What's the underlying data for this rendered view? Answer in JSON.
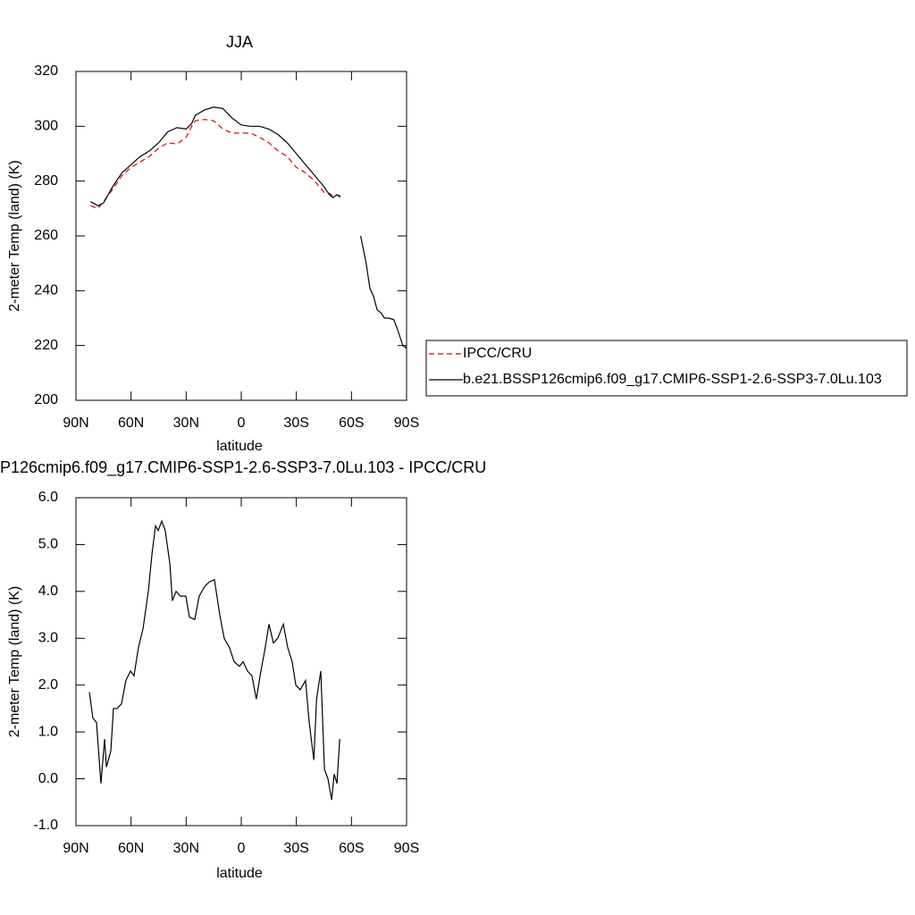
{
  "chart_data": [
    {
      "type": "line",
      "title": "JJA",
      "xlabel": "latitude",
      "ylabel": "2-meter Temp (land) (K)",
      "x": [
        82,
        78,
        75,
        70,
        65,
        60,
        55,
        50,
        45,
        40,
        35,
        30,
        27,
        25,
        20,
        15,
        10,
        5,
        0,
        -5,
        -10,
        -15,
        -20,
        -25,
        -30,
        -35,
        -40,
        -45,
        -48,
        -50,
        -52,
        -54,
        -60,
        -65,
        -68,
        -70,
        -72,
        -74,
        -76,
        -78,
        -80,
        -83,
        -85,
        -88,
        -90
      ],
      "series": [
        {
          "name": "IPCC/CRU",
          "color": "#e00000",
          "dash": "dashed",
          "values": [
            271,
            270,
            272.5,
            277,
            282,
            285,
            287,
            289,
            292,
            294,
            293.5,
            296,
            300,
            302,
            302.5,
            302,
            299,
            297.5,
            297.5,
            297.5,
            296,
            294,
            291,
            289,
            285,
            283,
            280,
            276,
            275.5,
            274.5,
            275,
            274,
            null,
            null,
            null,
            null,
            null,
            null,
            null,
            null,
            null,
            null,
            null,
            null,
            null
          ]
        },
        {
          "name": "b.e21.BSSP126cmip6.f09_g17.CMIP6-SSP1-2.6-SSP3-7.0Lu.103",
          "color": "#000000",
          "dash": "solid",
          "values": [
            272.5,
            271,
            272,
            278,
            283,
            286,
            289,
            291,
            294,
            298,
            299.5,
            299,
            301,
            304,
            306,
            307,
            306.5,
            303,
            300.5,
            300,
            300,
            299,
            297,
            294,
            290,
            286,
            282,
            278,
            275,
            274,
            275,
            274.5,
            null,
            260,
            250,
            241,
            238,
            233,
            232,
            230,
            230,
            229.5,
            226,
            220,
            219
          ]
        }
      ],
      "xlim": [
        90,
        -90
      ],
      "xticks": [
        {
          "value": 90,
          "label": "90N"
        },
        {
          "value": 60,
          "label": "60N"
        },
        {
          "value": 30,
          "label": "30N"
        },
        0,
        {
          "value": -30,
          "label": "30S"
        },
        {
          "value": -60,
          "label": "60S"
        },
        {
          "value": -90,
          "label": "90S"
        }
      ],
      "ylim": [
        200,
        320
      ],
      "yticks": [
        200,
        220,
        240,
        260,
        280,
        300,
        320
      ]
    },
    {
      "type": "line",
      "title": "P126cmip6.f09_g17.CMIP6-SSP1-2.6-SSP3-7.0Lu.103 - IPCC/CRU",
      "xlabel": "latitude",
      "ylabel": "2-meter Temp (land) (K)",
      "x": [
        82.7,
        80.8,
        78.8,
        76.4,
        74.4,
        73.4,
        71,
        69.6,
        67.6,
        65.2,
        62.8,
        60.3,
        58.4,
        56,
        53.5,
        50.6,
        48.6,
        46.7,
        45.2,
        43.3,
        41.4,
        38.9,
        37.5,
        35.5,
        33.1,
        30.2,
        28.2,
        25.3,
        22.9,
        20,
        17.5,
        14.6,
        11.7,
        9.3,
        6.4,
        3.9,
        1,
        -1,
        -3.4,
        -5.8,
        -8.2,
        -10.7,
        -12.6,
        -15.1,
        -17.5,
        -19.9,
        -22.9,
        -25.3,
        -27.7,
        -29.7,
        -32.1,
        -35,
        -37,
        -39.5,
        -41,
        -43.3,
        -45.3,
        -47.2,
        -49.2,
        -50.6,
        -52.1,
        -53.6
      ],
      "values": [
        1.85,
        1.3,
        1.2,
        -0.1,
        0.85,
        0.25,
        0.6,
        1.5,
        1.5,
        1.6,
        2.1,
        2.3,
        2.2,
        2.8,
        3.2,
        4.0,
        4.8,
        5.4,
        5.3,
        5.5,
        5.3,
        4.6,
        3.8,
        4.0,
        3.9,
        3.9,
        3.45,
        3.4,
        3.9,
        4.1,
        4.2,
        4.25,
        3.5,
        3.0,
        2.8,
        2.5,
        2.4,
        2.5,
        2.3,
        2.2,
        1.7,
        2.3,
        2.7,
        3.3,
        2.9,
        3.0,
        3.3,
        2.8,
        2.5,
        2.0,
        1.9,
        2.1,
        1.2,
        0.4,
        1.7,
        2.3,
        0.2,
        0.0,
        -0.45,
        0.1,
        -0.1,
        0.85
      ],
      "color": "#000000",
      "xlim": [
        90,
        -90
      ],
      "xticks": [
        {
          "value": 90,
          "label": "90N"
        },
        {
          "value": 60,
          "label": "60N"
        },
        {
          "value": 30,
          "label": "30N"
        },
        0,
        {
          "value": -30,
          "label": "30S"
        },
        {
          "value": -60,
          "label": "60S"
        },
        {
          "value": -90,
          "label": "90S"
        }
      ],
      "ylim": [
        -1,
        6
      ],
      "yticks": [
        {
          "value": -1,
          "label": "-1.0"
        },
        {
          "value": 0,
          "label": "0.0"
        },
        {
          "value": 1,
          "label": "1.0"
        },
        {
          "value": 2,
          "label": "2.0"
        },
        {
          "value": 3,
          "label": "3.0"
        },
        {
          "value": 4,
          "label": "4.0"
        },
        {
          "value": 5,
          "label": "5.0"
        },
        {
          "value": 6,
          "label": "6.0"
        }
      ]
    }
  ]
}
